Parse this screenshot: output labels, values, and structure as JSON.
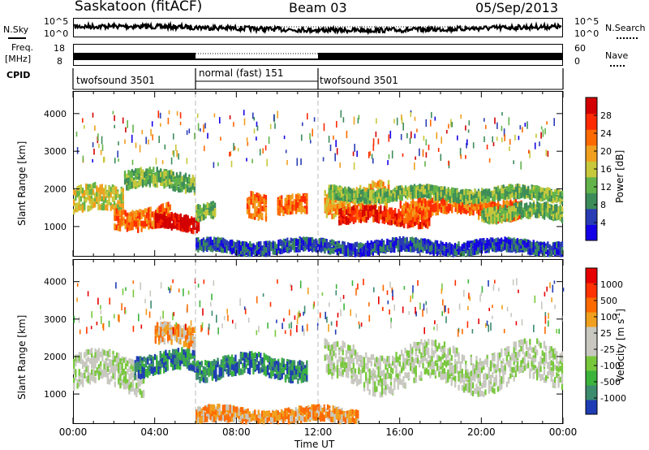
{
  "header": {
    "title": "Saskatoon (fitACF)",
    "beam": "Beam 03",
    "date": "05/Sep/2013"
  },
  "nsky_panel": {
    "left_label": "N.Sky",
    "left_ticks": [
      "10^5",
      "10^0"
    ],
    "right_ticks": [
      "10^5",
      "10^0"
    ],
    "right_label": "N.Search"
  },
  "freq_panel": {
    "left_label_1": "Freq.",
    "left_label_2": "[MHz]",
    "left_ticks": [
      "18",
      "8"
    ],
    "right_ticks": [
      "60",
      "0"
    ],
    "right_label": "Nave"
  },
  "cpid": {
    "label": "CPID",
    "segments": [
      {
        "name": "twofsound 3501",
        "start_hour": 0,
        "end_hour": 6
      },
      {
        "name": "normal (fast) 151",
        "start_hour": 6,
        "end_hour": 12
      },
      {
        "name": "twofsound 3501",
        "start_hour": 12,
        "end_hour": 24
      }
    ]
  },
  "chart_data": [
    {
      "type": "heatmap",
      "name": "power",
      "ylabel": "Slant Range [km]",
      "yticks": [
        "4000",
        "3000",
        "2000",
        "1000"
      ],
      "ylim": [
        200,
        4600
      ],
      "xlim": [
        0,
        24
      ],
      "colorbar_label": "Power [dB]",
      "colorbar_ticks": [
        "28",
        "24",
        "20",
        "16",
        "12",
        "8",
        "4"
      ],
      "colors": [
        "#1400e6",
        "#2a3cb4",
        "#3c8c5a",
        "#62b44a",
        "#c8c83c",
        "#f0a01e",
        "#ff6a00",
        "#ff2a00",
        "#d20000"
      ],
      "bands": [
        {
          "start_hour": 0.0,
          "end_hour": 2.5,
          "range_center": 1650,
          "width": 450,
          "level": 4
        },
        {
          "start_hour": 2.0,
          "end_hour": 4.8,
          "range_center": 1250,
          "width": 350,
          "level": 6
        },
        {
          "start_hour": 4.0,
          "end_hour": 6.2,
          "range_center": 1050,
          "width": 250,
          "level": 8
        },
        {
          "start_hour": 2.5,
          "end_hour": 6.0,
          "range_center": 2200,
          "width": 300,
          "level": 3
        },
        {
          "start_hour": 6.0,
          "end_hour": 7.0,
          "range_center": 1400,
          "width": 250,
          "level": 3
        },
        {
          "start_hour": 8.5,
          "end_hour": 9.5,
          "range_center": 1650,
          "width": 450,
          "level": 6
        },
        {
          "start_hour": 10.0,
          "end_hour": 11.5,
          "range_center": 1500,
          "width": 300,
          "level": 6
        },
        {
          "start_hour": 12.3,
          "end_hour": 15.5,
          "range_center": 1700,
          "width": 450,
          "level": 5
        },
        {
          "start_hour": 13.0,
          "end_hour": 17.5,
          "range_center": 1250,
          "width": 250,
          "level": 7
        },
        {
          "start_hour": 16.0,
          "end_hour": 22.0,
          "range_center": 1500,
          "width": 350,
          "level": 6
        },
        {
          "start_hour": 20.0,
          "end_hour": 24.0,
          "range_center": 1350,
          "width": 250,
          "level": 3
        },
        {
          "start_hour": 12.5,
          "end_hour": 24.0,
          "range_center": 1850,
          "width": 200,
          "level": 3
        },
        {
          "start_hour": 6.0,
          "end_hour": 24.0,
          "range_center": 450,
          "width": 200,
          "level": 1
        }
      ]
    },
    {
      "type": "heatmap",
      "name": "velocity",
      "ylabel": "Slant Range [km]",
      "yticks": [
        "4000",
        "3000",
        "2000",
        "1000"
      ],
      "ylim": [
        200,
        4600
      ],
      "xlim": [
        0,
        24
      ],
      "colorbar_label": "Velocity [m s",
      "colorbar_label_sup": "-1",
      "colorbar_label_end": "]",
      "colorbar_ticks": [
        "1000",
        "500",
        "100",
        "25",
        "-25",
        "-100",
        "-500",
        "-1000"
      ],
      "colors": [
        "#1e3cb4",
        "#3c8c6e",
        "#3cb43c",
        "#78c83c",
        "#c8c8c0",
        "#c8c8c0",
        "#f0a01e",
        "#ff6a00",
        "#ff3200",
        "#e60000"
      ],
      "bands": [
        {
          "start_hour": 0.0,
          "end_hour": 3.5,
          "range_center": 1550,
          "width": 600,
          "level": 4
        },
        {
          "start_hour": 3.0,
          "end_hour": 6.0,
          "range_center": 1800,
          "width": 350,
          "level": 1
        },
        {
          "start_hour": 4.0,
          "end_hour": 6.0,
          "range_center": 2500,
          "width": 350,
          "level": 6
        },
        {
          "start_hour": 6.0,
          "end_hour": 11.5,
          "range_center": 1700,
          "width": 350,
          "level": 1
        },
        {
          "start_hour": 12.3,
          "end_hour": 24.0,
          "range_center": 1700,
          "width": 700,
          "level": 4
        },
        {
          "start_hour": 6.0,
          "end_hour": 14.0,
          "range_center": 400,
          "width": 250,
          "level": 6
        }
      ]
    }
  ],
  "x_axis": {
    "ticks": [
      "00:00",
      "04:00",
      "08:00",
      "12:00",
      "16:00",
      "20:00",
      "00:00"
    ],
    "label": "Time UT"
  }
}
